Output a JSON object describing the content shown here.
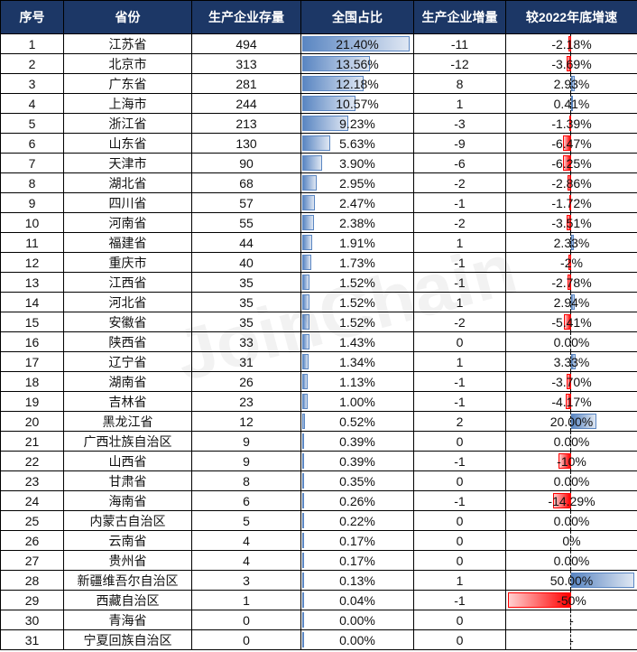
{
  "headers": [
    "序号",
    "省份",
    "生产企业存量",
    "全国占比",
    "生产企业增量",
    "较2022年底增速"
  ],
  "watermark": "JoinChain",
  "colors": {
    "header_bg": "#1c3766",
    "positive_bar": "#5a86c2",
    "negative_bar": "#ff0000"
  },
  "rows": [
    [
      "1",
      "江苏省",
      "494",
      "21.40%",
      "-11",
      "-2.18%"
    ],
    [
      "2",
      "北京市",
      "313",
      "13.56%",
      "-12",
      "-3.69%"
    ],
    [
      "3",
      "广东省",
      "281",
      "12.18%",
      "8",
      "2.93%"
    ],
    [
      "4",
      "上海市",
      "244",
      "10.57%",
      "1",
      "0.41%"
    ],
    [
      "5",
      "浙江省",
      "213",
      "9.23%",
      "-3",
      "-1.39%"
    ],
    [
      "6",
      "山东省",
      "130",
      "5.63%",
      "-9",
      "-6.47%"
    ],
    [
      "7",
      "天津市",
      "90",
      "3.90%",
      "-6",
      "-6.25%"
    ],
    [
      "8",
      "湖北省",
      "68",
      "2.95%",
      "-2",
      "-2.86%"
    ],
    [
      "9",
      "四川省",
      "57",
      "2.47%",
      "-1",
      "-1.72%"
    ],
    [
      "10",
      "河南省",
      "55",
      "2.38%",
      "-2",
      "-3.51%"
    ],
    [
      "11",
      "福建省",
      "44",
      "1.91%",
      "1",
      "2.33%"
    ],
    [
      "12",
      "重庆市",
      "40",
      "1.73%",
      "-1",
      "-2%"
    ],
    [
      "13",
      "江西省",
      "35",
      "1.52%",
      "-1",
      "-2.78%"
    ],
    [
      "14",
      "河北省",
      "35",
      "1.52%",
      "1",
      "2.94%"
    ],
    [
      "15",
      "安徽省",
      "35",
      "1.52%",
      "-2",
      "-5.41%"
    ],
    [
      "16",
      "陕西省",
      "33",
      "1.43%",
      "0",
      "0.00%"
    ],
    [
      "17",
      "辽宁省",
      "31",
      "1.34%",
      "1",
      "3.33%"
    ],
    [
      "18",
      "湖南省",
      "26",
      "1.13%",
      "-1",
      "-3.70%"
    ],
    [
      "19",
      "吉林省",
      "23",
      "1.00%",
      "-1",
      "-4.17%"
    ],
    [
      "20",
      "黑龙江省",
      "12",
      "0.52%",
      "2",
      "20.00%"
    ],
    [
      "21",
      "广西壮族自治区",
      "9",
      "0.39%",
      "0",
      "0.00%"
    ],
    [
      "22",
      "山西省",
      "9",
      "0.39%",
      "-1",
      "-10%"
    ],
    [
      "23",
      "甘肃省",
      "8",
      "0.35%",
      "0",
      "0.00%"
    ],
    [
      "24",
      "海南省",
      "6",
      "0.26%",
      "-1",
      "-14.29%"
    ],
    [
      "25",
      "内蒙古自治区",
      "5",
      "0.22%",
      "0",
      "0.00%"
    ],
    [
      "26",
      "云南省",
      "4",
      "0.17%",
      "0",
      "0%"
    ],
    [
      "27",
      "贵州省",
      "4",
      "0.17%",
      "0",
      "0.00%"
    ],
    [
      "28",
      "新疆维吾尔自治区",
      "3",
      "0.13%",
      "1",
      "50.00%"
    ],
    [
      "29",
      "西藏自治区",
      "1",
      "0.04%",
      "-1",
      "-50%"
    ],
    [
      "30",
      "青海省",
      "0",
      "0.00%",
      "0",
      "-"
    ],
    [
      "31",
      "宁夏回族自治区",
      "0",
      "0.00%",
      "0",
      "-"
    ]
  ]
}
